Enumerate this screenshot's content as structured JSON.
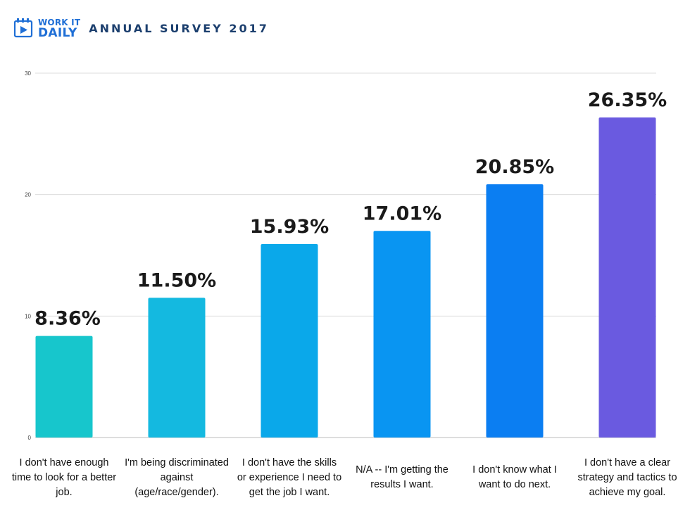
{
  "header": {
    "logo_line1": "WORK IT",
    "logo_line2": "DAILY",
    "title": "ANNUAL SURVEY 2017"
  },
  "chart_data": {
    "type": "bar",
    "categories": [
      "I don't have enough time to look for a better job.",
      "I'm being discriminated against (age/race/gender).",
      "I don't have the skills or experience I need to get the job I want.",
      "N/A -- I'm getting the results I want.",
      "I don't know what I want to do next.",
      "I don't have a clear strategy and tactics to achieve my goal."
    ],
    "values": [
      8.36,
      11.5,
      15.93,
      17.01,
      20.85,
      26.35
    ],
    "value_labels": [
      "8.36%",
      "11.50%",
      "15.93%",
      "17.01%",
      "20.85%",
      "26.35%"
    ],
    "colors": [
      "#17c6cc",
      "#14b9e0",
      "#0aa8ea",
      "#0995f2",
      "#0b7ef2",
      "#6a5ae0"
    ],
    "yticks": [
      "0",
      "10",
      "20",
      "30"
    ],
    "ylim": [
      0,
      30
    ],
    "grid": true
  }
}
